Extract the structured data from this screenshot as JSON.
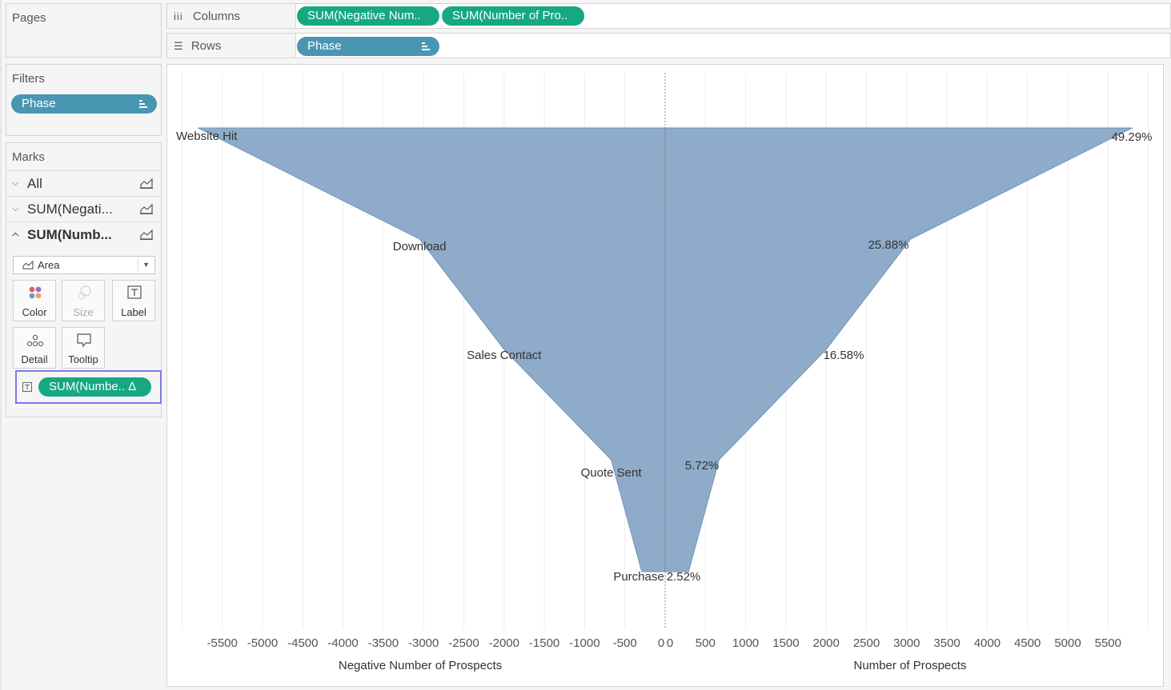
{
  "pages": {
    "title": "Pages"
  },
  "filters": {
    "title": "Filters",
    "pill": "Phase"
  },
  "marks": {
    "title": "Marks",
    "rows": [
      {
        "label": "All",
        "expanded": false
      },
      {
        "label": "SUM(Negati...",
        "expanded": false
      },
      {
        "label": "SUM(Numb...",
        "expanded": true
      }
    ],
    "mark_type": "Area",
    "cards": {
      "color": "Color",
      "size": "Size",
      "label": "Label",
      "detail": "Detail",
      "tooltip": "Tooltip"
    },
    "label_pill": "SUM(Numbe.. Δ"
  },
  "shelves": {
    "columns": {
      "label": "Columns",
      "pills": [
        "SUM(Negative Num..",
        "SUM(Number of Pro.."
      ]
    },
    "rows": {
      "label": "Rows",
      "pills": [
        "Phase"
      ]
    }
  },
  "colors": {
    "area": "#8eabc9",
    "area_stroke": "#6f93bb",
    "green_pill": "#16a883",
    "blue_pill": "#4996b2"
  },
  "chart_data": {
    "type": "area",
    "orientation": "horizontal-funnel",
    "categories": [
      "Website Hit",
      "Download",
      "Sales Contact",
      "Quote Sent",
      "Purchase"
    ],
    "series": [
      {
        "axis": "left",
        "values": [
          -5800,
          -3050,
          -2000,
          -670,
          -290
        ]
      },
      {
        "axis": "right",
        "values": [
          5800,
          3050,
          2000,
          670,
          290
        ],
        "labels": [
          "49.29%",
          "25.88%",
          "16.58%",
          "5.72%",
          "2.52%"
        ]
      }
    ],
    "left_axis": {
      "label": "Negative Number of Prospects",
      "ticks": [
        -5500,
        -5000,
        -4500,
        -4000,
        -3500,
        -3000,
        -2500,
        -2000,
        -1500,
        -1000,
        -500,
        0
      ]
    },
    "right_axis": {
      "label": "Number of Prospects",
      "ticks": [
        0,
        500,
        1000,
        1500,
        2000,
        2500,
        3000,
        3500,
        4000,
        4500,
        5000,
        5500
      ]
    },
    "xlim": [
      -6000,
      6000
    ],
    "grid": "vertical"
  }
}
